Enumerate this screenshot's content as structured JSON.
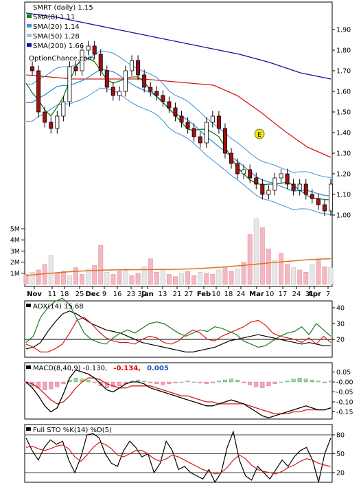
{
  "chart_data": [
    {
      "type": "candlestick",
      "title": "SMRT (daily) 1.15",
      "watermark": "OptionChance.com",
      "ylim": [
        0.9,
        1.98
      ],
      "yticks": [
        "1.90",
        "1.80",
        "1.70",
        "1.60",
        "1.50",
        "1.40",
        "1.30",
        "1.20",
        "1.10",
        "1.00"
      ],
      "ytick_values": [
        1.9,
        1.8,
        1.7,
        1.6,
        1.5,
        1.4,
        1.3,
        1.2,
        1.1,
        1.0
      ],
      "legend": [
        {
          "label": "SMA(8) 1.11",
          "color": "#1a7a1a"
        },
        {
          "label": "SMA(20) 1.14",
          "color": "#3a8fd8"
        },
        {
          "label": "SMA(50) 1.28",
          "color": "#8fc8ee"
        },
        {
          "label": "SMA(200) 1.66",
          "color": "#1010a0"
        }
      ],
      "marker": "E",
      "sma200": [
        1.98,
        1.96,
        1.93,
        1.9,
        1.87,
        1.84,
        1.81,
        1.78,
        1.74,
        1.69,
        1.66
      ],
      "sma50_red": [
        1.68,
        1.67,
        1.66,
        1.66,
        1.66,
        1.66,
        1.65,
        1.64,
        1.63,
        1.58,
        1.5,
        1.41,
        1.33,
        1.28
      ],
      "close_series": [
        1.72,
        1.7,
        1.5,
        1.45,
        1.42,
        1.48,
        1.55,
        1.72,
        1.7,
        1.8,
        1.82,
        1.78,
        1.7,
        1.62,
        1.58,
        1.6,
        1.7,
        1.75,
        1.68,
        1.62,
        1.6,
        1.58,
        1.55,
        1.52,
        1.48,
        1.45,
        1.42,
        1.38,
        1.35,
        1.45,
        1.48,
        1.42,
        1.3,
        1.25,
        1.2,
        1.22,
        1.18,
        1.15,
        1.1,
        1.12,
        1.18,
        1.2,
        1.15,
        1.12,
        1.15,
        1.1,
        1.08,
        1.05,
        1.02,
        1.15
      ]
    },
    {
      "type": "bar",
      "name": "Volume",
      "yticks": [
        "5M",
        "4M",
        "3M",
        "2M",
        "1M"
      ],
      "ytick_values": [
        5,
        4,
        3,
        2,
        1
      ],
      "ylim": [
        0,
        6
      ],
      "values": [
        0.9,
        1.1,
        1.3,
        1.8,
        2.6,
        1.0,
        1.2,
        0.8,
        1.5,
        0.9,
        1.4,
        1.7,
        3.5,
        1.1,
        0.9,
        1.2,
        1.4,
        0.8,
        1.0,
        1.6,
        2.3,
        1.1,
        1.3,
        0.9,
        0.7,
        1.0,
        1.2,
        0.8,
        1.1,
        1.0,
        0.9,
        1.3,
        1.6,
        1.2,
        1.4,
        2.0,
        4.5,
        5.9,
        5.1,
        3.2,
        2.2,
        2.8,
        1.8,
        1.5,
        1.3,
        1.1,
        1.8,
        2.2,
        1.6,
        1.5
      ]
    },
    {
      "type": "line",
      "title": "ADX(14) 15.68",
      "yticks": [
        "40",
        "30",
        "20"
      ],
      "ytick_values": [
        40,
        30,
        20
      ],
      "ylim": [
        8,
        45
      ],
      "series": [
        {
          "name": "ADX",
          "values": [
            14,
            15,
            18,
            25,
            31,
            36,
            38,
            36,
            33,
            30,
            28,
            26,
            25,
            24,
            22,
            20,
            18,
            17,
            16,
            15,
            14,
            13,
            12,
            12,
            13,
            14,
            15,
            17,
            19,
            20,
            21,
            22,
            23,
            22,
            21,
            20,
            19,
            18,
            17,
            18,
            17,
            16,
            16
          ]
        },
        {
          "name": "+DI",
          "values": [
            18,
            22,
            34,
            40,
            44,
            46,
            42,
            33,
            24,
            20,
            18,
            17,
            21,
            24,
            26,
            24,
            27,
            30,
            31,
            30,
            27,
            24,
            22,
            24,
            26,
            25,
            28,
            27,
            25,
            23,
            19,
            17,
            15,
            16,
            19,
            22,
            24,
            25,
            28,
            23,
            30,
            26,
            22
          ]
        },
        {
          "name": "-DI",
          "values": [
            17,
            15,
            12,
            12,
            14,
            17,
            24,
            32,
            34,
            30,
            25,
            21,
            19,
            18,
            18,
            17,
            20,
            22,
            21,
            18,
            17,
            19,
            23,
            26,
            24,
            20,
            19,
            22,
            24,
            26,
            28,
            31,
            32,
            29,
            24,
            22,
            21,
            20,
            18,
            21,
            17,
            22,
            18
          ]
        }
      ]
    },
    {
      "type": "bar",
      "title": "MACD(8,40,9) -0.130, -0.134, 0.005",
      "legend": [
        {
          "label": "MACD(8,40,9) -0.130,",
          "color": "#000000"
        },
        {
          "label": "-0.134,",
          "color": "#e00000"
        },
        {
          "label": "0.005",
          "color": "#1a4fc0"
        }
      ],
      "yticks": [
        "0.05",
        "-0.00",
        "-0.05",
        "-0.10",
        "-0.15"
      ],
      "ytick_values": [
        0.05,
        0.0,
        -0.05,
        -0.1,
        -0.15
      ],
      "ylim": [
        -0.19,
        0.07
      ],
      "histogram": [
        -0.01,
        -0.02,
        -0.03,
        -0.04,
        -0.035,
        -0.025,
        -0.01,
        0.01,
        0.02,
        0.015,
        0.01,
        -0.005,
        -0.02,
        -0.03,
        -0.025,
        -0.02,
        -0.01,
        0.005,
        0.01,
        0.005,
        -0.005,
        -0.01,
        -0.015,
        -0.01,
        -0.005,
        0.0,
        0.005,
        0.0,
        -0.005,
        -0.01,
        -0.005,
        0.005,
        0.01,
        0.015,
        0.01,
        -0.005,
        -0.015,
        -0.025,
        -0.03,
        -0.02,
        -0.01,
        0.0,
        0.005,
        0.015,
        0.02,
        0.015,
        0.01,
        0.005,
        -0.005,
        0.005
      ],
      "macd": [
        0.0,
        -0.03,
        -0.07,
        -0.12,
        -0.15,
        -0.13,
        -0.06,
        0.02,
        0.06,
        0.05,
        0.04,
        0.02,
        -0.01,
        -0.04,
        -0.05,
        -0.03,
        -0.01,
        0.0,
        0.0,
        -0.01,
        -0.03,
        -0.04,
        -0.05,
        -0.06,
        -0.07,
        -0.08,
        -0.09,
        -0.1,
        -0.11,
        -0.12,
        -0.12,
        -0.11,
        -0.1,
        -0.09,
        -0.1,
        -0.11,
        -0.13,
        -0.15,
        -0.17,
        -0.18,
        -0.17,
        -0.16,
        -0.15,
        -0.14,
        -0.13,
        -0.12,
        -0.13,
        -0.14,
        -0.14,
        -0.13
      ],
      "signal": [
        0.0,
        -0.01,
        -0.03,
        -0.06,
        -0.09,
        -0.11,
        -0.1,
        -0.07,
        -0.03,
        0.0,
        0.02,
        0.02,
        0.01,
        -0.01,
        -0.02,
        -0.03,
        -0.03,
        -0.02,
        -0.02,
        -0.02,
        -0.02,
        -0.03,
        -0.04,
        -0.05,
        -0.06,
        -0.07,
        -0.07,
        -0.08,
        -0.09,
        -0.1,
        -0.1,
        -0.11,
        -0.11,
        -0.11,
        -0.11,
        -0.11,
        -0.12,
        -0.13,
        -0.14,
        -0.15,
        -0.16,
        -0.16,
        -0.16,
        -0.15,
        -0.15,
        -0.14,
        -0.14,
        -0.14,
        -0.14,
        -0.13
      ]
    },
    {
      "type": "line",
      "title": "Full STO %K(14) %D(5)",
      "yticks": [
        "80",
        "50",
        "20"
      ],
      "ytick_values": [
        80,
        50,
        20
      ],
      "ylim": [
        0,
        90
      ],
      "series": [
        {
          "name": "%K",
          "values": [
            75,
            55,
            40,
            60,
            72,
            65,
            70,
            40,
            20,
            45,
            80,
            82,
            75,
            50,
            35,
            30,
            55,
            70,
            60,
            45,
            50,
            20,
            35,
            70,
            55,
            25,
            30,
            20,
            15,
            10,
            25,
            5,
            20,
            60,
            85,
            40,
            15,
            8,
            30,
            20,
            10,
            25,
            40,
            30,
            45,
            55,
            60,
            40,
            5,
            50,
            75
          ]
        },
        {
          "name": "%D",
          "values": [
            60,
            62,
            58,
            55,
            58,
            62,
            64,
            58,
            45,
            38,
            48,
            60,
            68,
            65,
            58,
            48,
            45,
            50,
            55,
            55,
            50,
            42,
            38,
            42,
            48,
            45,
            40,
            35,
            30,
            25,
            22,
            18,
            20,
            28,
            40,
            48,
            42,
            32,
            25,
            22,
            20,
            18,
            22,
            28,
            32,
            38,
            42,
            40,
            35,
            32,
            30
          ]
        }
      ]
    }
  ],
  "x_axis": {
    "labels": [
      {
        "text": "Nov",
        "bold": true
      },
      {
        "text": "11",
        "bold": false
      },
      {
        "text": "18",
        "bold": false
      },
      {
        "text": "25",
        "bold": false
      },
      {
        "text": "Dec",
        "bold": true
      },
      {
        "text": "9",
        "bold": false
      },
      {
        "text": "16",
        "bold": false
      },
      {
        "text": "23",
        "bold": false
      },
      {
        "text": "30",
        "bold": false
      },
      {
        "text": "Jan",
        "bold": true
      },
      {
        "text": "13",
        "bold": false
      },
      {
        "text": "21",
        "bold": false
      },
      {
        "text": "27",
        "bold": false
      },
      {
        "text": "Feb",
        "bold": true
      },
      {
        "text": "10",
        "bold": false
      },
      {
        "text": "18",
        "bold": false
      },
      {
        "text": "24",
        "bold": false
      },
      {
        "text": "Mar",
        "bold": true
      },
      {
        "text": "10",
        "bold": false
      },
      {
        "text": "17",
        "bold": false
      },
      {
        "text": "24",
        "bold": false
      },
      {
        "text": "31",
        "bold": false
      },
      {
        "text": "Apr",
        "bold": true
      },
      {
        "text": "7",
        "bold": false
      }
    ]
  }
}
